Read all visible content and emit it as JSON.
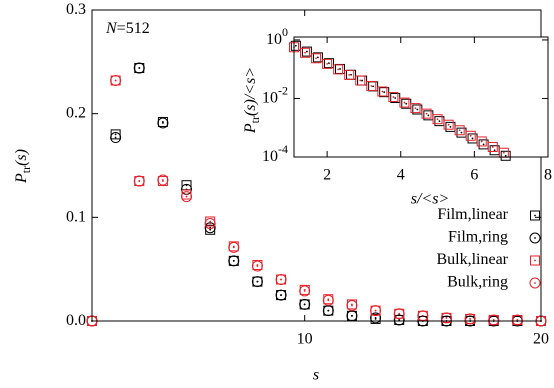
{
  "chart_data": [
    {
      "type": "scatter",
      "annotation": {
        "n": "N",
        "rest": "=512"
      },
      "xlabel": "s",
      "ylabel": {
        "p": "P",
        "sub": "tr",
        "rest": "(s)"
      },
      "x": [
        1,
        2,
        3,
        4,
        5,
        6,
        7,
        8,
        9,
        10,
        11,
        12,
        13,
        14,
        15,
        16,
        17,
        18,
        19,
        20
      ],
      "xlim": [
        1,
        20
      ],
      "xticks": [
        10,
        20
      ],
      "ylim": [
        0,
        0.3
      ],
      "yticks": [
        {
          "value": 0,
          "label": "0.0"
        },
        0.1,
        0.2,
        0.3
      ],
      "legend": "lower right",
      "series": [
        {
          "name": "Film,linear",
          "color": "#000000",
          "marker": "square",
          "values": [
            0,
            0.18,
            0.244,
            0.192,
            0.131,
            0.088,
            0.058,
            0.038,
            0.025,
            0.016,
            0.01,
            0.005,
            0.002,
            0.001,
            0,
            0,
            0,
            0,
            0,
            0
          ]
        },
        {
          "name": "Film,ring",
          "color": "#000000",
          "marker": "circle",
          "values": [
            0,
            0.177,
            0.244,
            0.191,
            0.127,
            0.09,
            0.058,
            0.038,
            0.025,
            0.016,
            0.01,
            0.005,
            0.003,
            0.001,
            0,
            0,
            0,
            0,
            0,
            0
          ]
        },
        {
          "name": "Bulk,linear",
          "color": "#e8202a",
          "marker": "square",
          "values": [
            0,
            0.232,
            0.135,
            0.135,
            0.122,
            0.096,
            0.072,
            0.054,
            0.04,
            0.03,
            0.021,
            0.016,
            0.01,
            0.007,
            0.005,
            0.003,
            0.002,
            0.001,
            0.001,
            0
          ]
        },
        {
          "name": "Bulk,ring",
          "color": "#e8202a",
          "marker": "circle",
          "values": [
            0,
            0.232,
            0.135,
            0.136,
            0.12,
            0.094,
            0.071,
            0.053,
            0.04,
            0.029,
            0.02,
            0.015,
            0.01,
            0.007,
            0.005,
            0.003,
            0.002,
            0.001,
            0.001,
            0
          ]
        }
      ]
    },
    {
      "type": "scatter",
      "xlabel": "s/<s>",
      "ylabel": {
        "p": "P",
        "sub": "tr",
        "rest": "(s)/<s>"
      },
      "xlim": [
        1.1,
        8
      ],
      "xticks": [
        2,
        4,
        6,
        8
      ],
      "ylim": [
        0.0001,
        1.26
      ],
      "log_y": true,
      "yticks": [
        {
          "value": 1,
          "label": "10",
          "exp": "0"
        },
        {
          "value": 0.01,
          "label": "10",
          "exp": "-2"
        },
        {
          "value": 0.0001,
          "label": "10",
          "exp": "-4"
        }
      ],
      "series": [
        {
          "color": "#000000",
          "marker": "square",
          "x": [
            1.15,
            1.45,
            1.75,
            2.05,
            2.35,
            2.65,
            2.95,
            3.25,
            3.55,
            3.85,
            4.15,
            4.45,
            4.75,
            5.05,
            5.35,
            5.65,
            5.95,
            6.25,
            6.55,
            6.85
          ],
          "values": [
            0.631,
            0.4,
            0.254,
            0.161,
            0.102,
            0.0646,
            0.0409,
            0.0259,
            0.0164,
            0.0104,
            0.0066,
            0.0042,
            0.00265,
            0.00168,
            0.00107,
            0.00068,
            0.00043,
            0.00027,
            0.00017,
            0.00011
          ]
        },
        {
          "color": "#e8202a",
          "marker": "square",
          "x": [
            1.1,
            1.4,
            1.7,
            2.0,
            2.3,
            2.6,
            2.9,
            3.2,
            3.5,
            3.8,
            4.1,
            4.4,
            4.7,
            5.0,
            5.3,
            5.6,
            5.9,
            6.2,
            6.5,
            6.8
          ],
          "values": [
            0.562,
            0.364,
            0.236,
            0.152,
            0.0986,
            0.0638,
            0.0413,
            0.0267,
            0.0173,
            0.0112,
            0.00724,
            0.00469,
            0.00303,
            0.00196,
            0.00127,
            0.00082,
            0.00053,
            0.00034,
            0.00022,
            0.00014
          ]
        }
      ]
    }
  ]
}
